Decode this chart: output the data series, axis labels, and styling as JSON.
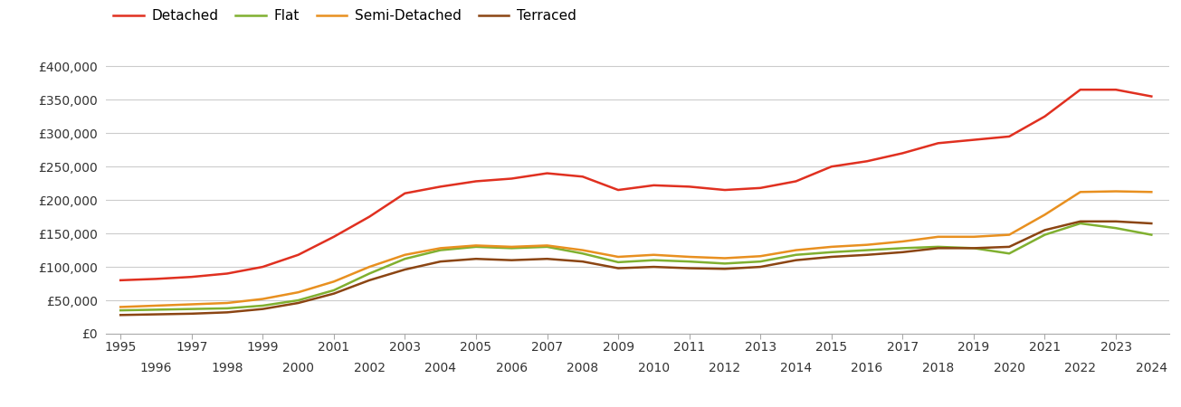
{
  "years": [
    1995,
    1996,
    1997,
    1998,
    1999,
    2000,
    2001,
    2002,
    2003,
    2004,
    2005,
    2006,
    2007,
    2008,
    2009,
    2010,
    2011,
    2012,
    2013,
    2014,
    2015,
    2016,
    2017,
    2018,
    2019,
    2020,
    2021,
    2022,
    2023,
    2024
  ],
  "detached": [
    80000,
    82000,
    85000,
    90000,
    100000,
    118000,
    145000,
    175000,
    210000,
    220000,
    228000,
    232000,
    240000,
    235000,
    215000,
    222000,
    220000,
    215000,
    218000,
    228000,
    250000,
    258000,
    270000,
    285000,
    290000,
    295000,
    325000,
    365000,
    365000,
    355000
  ],
  "flat": [
    35000,
    36000,
    37000,
    38000,
    42000,
    50000,
    65000,
    90000,
    112000,
    125000,
    130000,
    128000,
    130000,
    120000,
    107000,
    110000,
    108000,
    105000,
    108000,
    118000,
    122000,
    125000,
    128000,
    130000,
    128000,
    120000,
    148000,
    165000,
    158000,
    148000
  ],
  "semi_detached": [
    40000,
    42000,
    44000,
    46000,
    52000,
    62000,
    78000,
    100000,
    118000,
    128000,
    132000,
    130000,
    132000,
    125000,
    115000,
    118000,
    115000,
    113000,
    116000,
    125000,
    130000,
    133000,
    138000,
    145000,
    145000,
    148000,
    178000,
    212000,
    213000,
    212000
  ],
  "terraced": [
    28000,
    29000,
    30000,
    32000,
    37000,
    46000,
    60000,
    80000,
    96000,
    108000,
    112000,
    110000,
    112000,
    108000,
    98000,
    100000,
    98000,
    97000,
    100000,
    110000,
    115000,
    118000,
    122000,
    128000,
    128000,
    130000,
    155000,
    168000,
    168000,
    165000
  ],
  "line_colors": {
    "detached": "#e03020",
    "flat": "#80b030",
    "semi_detached": "#e89020",
    "terraced": "#8B4513"
  },
  "ylim": [
    0,
    420000
  ],
  "yticks": [
    0,
    50000,
    100000,
    150000,
    200000,
    250000,
    300000,
    350000,
    400000
  ],
  "ytick_labels": [
    "£0",
    "£50,000",
    "£100,000",
    "£150,000",
    "£200,000",
    "£250,000",
    "£300,000",
    "£350,000",
    "£400,000"
  ],
  "xticks_odd": [
    1995,
    1997,
    1999,
    2001,
    2003,
    2005,
    2007,
    2009,
    2011,
    2013,
    2015,
    2017,
    2019,
    2021,
    2023
  ],
  "xticks_even": [
    1996,
    1998,
    2000,
    2002,
    2004,
    2006,
    2008,
    2010,
    2012,
    2014,
    2016,
    2018,
    2020,
    2022,
    2024
  ],
  "legend_labels": [
    "Detached",
    "Flat",
    "Semi-Detached",
    "Terraced"
  ],
  "background_color": "#ffffff",
  "grid_color": "#cccccc",
  "line_width": 1.8,
  "xlim": [
    1994.6,
    2024.5
  ]
}
